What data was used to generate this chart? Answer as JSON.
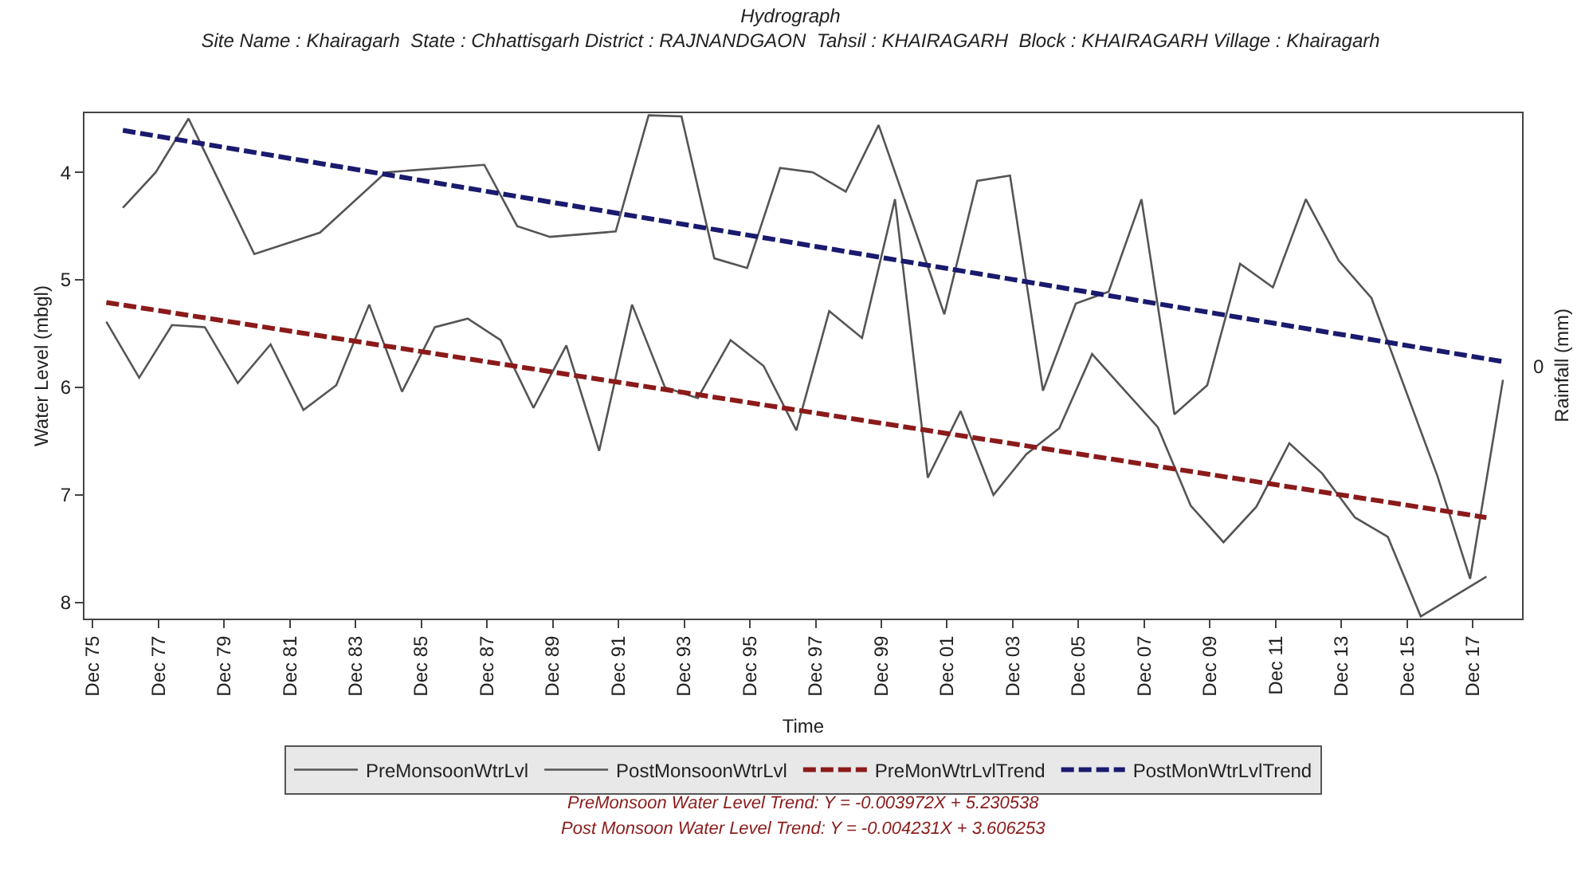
{
  "chart_data": {
    "type": "line",
    "title": "Hydrograph",
    "subtitle": "Site Name : Khairagarh  State : Chhattisgarh District : RAJNANDGAON  Tahsil : KHAIRAGARH  Block : KHAIRAGARH Village : Khairagarh",
    "xlabel": "Time",
    "ylabel": "Water Level (mbgl)",
    "y2label": "Rainfall (mm)",
    "series": [
      {
        "name": "PreMonsoonWtrLvl",
        "color": "#555555",
        "line_style": "solid",
        "x": [
          "1976-05",
          "1977-05",
          "1978-05",
          "1979-05",
          "1980-05",
          "1981-05",
          "1982-05",
          "1983-05",
          "1984-05",
          "1985-05",
          "1986-05",
          "1987-05",
          "1988-05",
          "1989-05",
          "1990-05",
          "1991-05",
          "1992-05",
          "1993-05",
          "1994-05",
          "1995-05",
          "1996-05",
          "1997-05",
          "1998-05",
          "1999-05",
          "2000-05",
          "2001-05",
          "2002-05",
          "2003-05",
          "2004-05",
          "2005-05",
          "2006-05",
          "2007-05",
          "2008-05",
          "2009-05",
          "2010-05",
          "2011-05",
          "2012-05",
          "2013-05",
          "2014-05",
          "2015-05",
          "2016-05",
          "2018-05"
        ],
        "values": [
          5.39,
          5.91,
          5.42,
          5.44,
          5.96,
          5.6,
          6.21,
          5.98,
          5.23,
          6.04,
          5.44,
          5.36,
          5.56,
          6.19,
          5.61,
          6.59,
          5.23,
          6.0,
          6.1,
          5.56,
          5.8,
          6.4,
          5.29,
          5.54,
          4.25,
          6.84,
          6.22,
          7.0,
          6.62,
          6.38,
          5.69,
          6.03,
          6.37,
          7.1,
          7.44,
          7.11,
          6.52,
          6.8,
          7.21,
          7.39,
          8.13,
          7.76
        ]
      },
      {
        "name": "PostMonsoonWtrLvl",
        "color": "#555555",
        "line_style": "solid",
        "x": [
          "1976-11",
          "1977-11",
          "1978-11",
          "1980-11",
          "1982-11",
          "1984-11",
          "1987-11",
          "1988-11",
          "1989-11",
          "1991-11",
          "1992-11",
          "1993-11",
          "1994-11",
          "1995-11",
          "1996-11",
          "1997-11",
          "1998-11",
          "1999-11",
          "2001-11",
          "2002-11",
          "2003-11",
          "2004-11",
          "2005-11",
          "2006-11",
          "2007-11",
          "2008-11",
          "2009-11",
          "2010-11",
          "2011-11",
          "2012-11",
          "2013-11",
          "2014-11",
          "2016-11",
          "2017-11",
          "2018-11"
        ],
        "values": [
          4.33,
          4.0,
          3.5,
          4.76,
          4.56,
          4.0,
          3.93,
          4.5,
          4.6,
          4.55,
          3.47,
          3.48,
          4.8,
          4.89,
          3.96,
          4.0,
          4.18,
          3.56,
          5.32,
          4.08,
          4.03,
          6.03,
          5.22,
          5.11,
          4.25,
          6.25,
          5.98,
          4.85,
          5.07,
          4.25,
          4.82,
          5.17,
          6.82,
          7.78,
          5.93
        ]
      },
      {
        "name": "PreMonWtrLvlTrend",
        "color": "#8b1a1a",
        "line_style": "dashed",
        "x": [
          "1976-05",
          "2018-05"
        ],
        "values": [
          5.21,
          7.21
        ]
      },
      {
        "name": "PostMonWtrLvlTrend",
        "color": "#1a1a6e",
        "line_style": "dashed",
        "x": [
          "1976-11",
          "2018-11"
        ],
        "values": [
          3.61,
          5.76
        ]
      }
    ],
    "xlim": [
      "1975-09",
      "2019-06"
    ],
    "xticks": [
      {
        "value": "1975-12",
        "label": "Dec 75"
      },
      {
        "value": "1977-12",
        "label": "Dec 77"
      },
      {
        "value": "1979-12",
        "label": "Dec 79"
      },
      {
        "value": "1981-12",
        "label": "Dec 81"
      },
      {
        "value": "1983-12",
        "label": "Dec 83"
      },
      {
        "value": "1985-12",
        "label": "Dec 85"
      },
      {
        "value": "1987-12",
        "label": "Dec 87"
      },
      {
        "value": "1989-12",
        "label": "Dec 89"
      },
      {
        "value": "1991-12",
        "label": "Dec 91"
      },
      {
        "value": "1993-12",
        "label": "Dec 93"
      },
      {
        "value": "1995-12",
        "label": "Dec 95"
      },
      {
        "value": "1997-12",
        "label": "Dec 97"
      },
      {
        "value": "1999-12",
        "label": "Dec 99"
      },
      {
        "value": "2001-12",
        "label": "Dec 01"
      },
      {
        "value": "2003-12",
        "label": "Dec 03"
      },
      {
        "value": "2005-12",
        "label": "Dec 05"
      },
      {
        "value": "2007-12",
        "label": "Dec 07"
      },
      {
        "value": "2009-12",
        "label": "Dec 09"
      },
      {
        "value": "2011-12",
        "label": "Dec 11"
      },
      {
        "value": "2013-12",
        "label": "Dec 13"
      },
      {
        "value": "2015-12",
        "label": "Dec 15"
      },
      {
        "value": "2017-12",
        "label": "Dec 17"
      }
    ],
    "ylim": [
      8.15,
      3.45
    ],
    "yticks": [
      4,
      5,
      6,
      7,
      8
    ],
    "legend": "bottom",
    "marker": "none",
    "annotations": [
      "0",
      "PreMonsoon Water Level Trend: Y = -0.003972X + 5.230538",
      "Post Monsoon Water Level Trend: Y = -0.004231X + 3.606253"
    ]
  }
}
